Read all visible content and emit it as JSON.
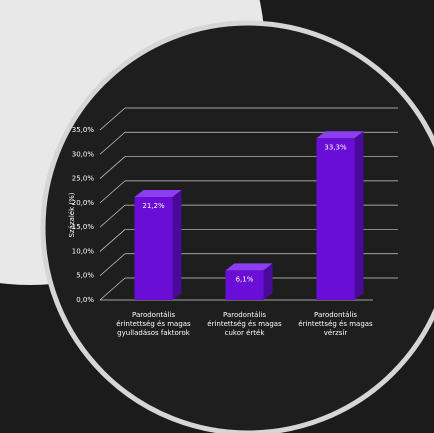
{
  "chart_data": {
    "type": "bar",
    "y_label": "Százalék (%)",
    "categories": [
      "Parodontális érintettség és magas gyulladásos faktorok",
      "Parodontális érintettség és magas cukor érték",
      "Parodontális érintettség és magas vérzsír"
    ],
    "values": [
      21.2,
      6.1,
      33.3
    ],
    "value_labels": [
      "21,2%",
      "6,1%",
      "33,3%"
    ],
    "color": "#6a0dd6",
    "ylim": [
      0,
      35
    ],
    "yticks": [
      {
        "value": 0,
        "label": "0,0%"
      },
      {
        "value": 5,
        "label": "5,0%"
      },
      {
        "value": 10,
        "label": "10,0%"
      },
      {
        "value": 15,
        "label": "15,0%"
      },
      {
        "value": 20,
        "label": "20,0%"
      },
      {
        "value": 25,
        "label": "25,0%"
      },
      {
        "value": 30,
        "label": "30,0%"
      },
      {
        "value": 35,
        "label": "35,0%"
      }
    ],
    "grid": true
  }
}
